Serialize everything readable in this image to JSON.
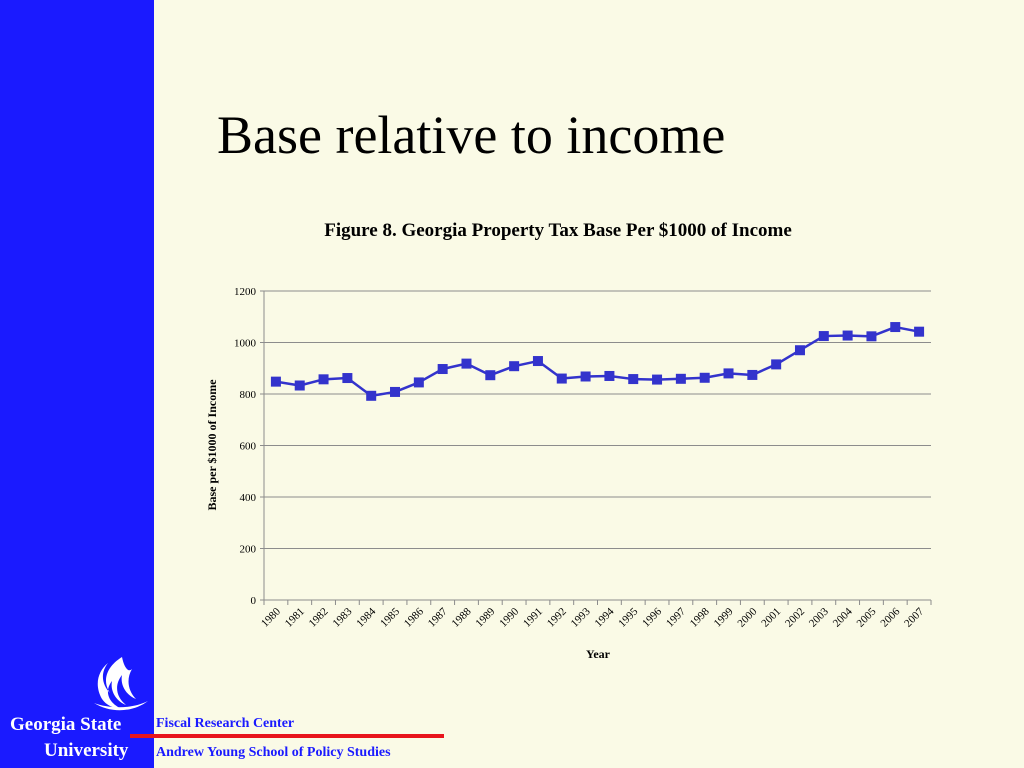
{
  "slide": {
    "title": "Base relative to income"
  },
  "sidebar": {
    "university_line1": "Georgia State",
    "university_line2": "University",
    "logo_icon": "gsu-flame-icon"
  },
  "footer": {
    "line1": "Fiscal Research Center",
    "line2": "Andrew Young School of Policy Studies"
  },
  "colors": {
    "sidebar": "#1a1aff",
    "background": "#fafae6",
    "accent_rule": "#e8141c",
    "series": "#3333cc"
  },
  "chart_data": {
    "type": "line",
    "title": "Figure 8. Georgia Property Tax Base Per $1000 of Income",
    "xlabel": "Year",
    "ylabel": "Base per $1000 of Income",
    "ylim": [
      0,
      1200
    ],
    "yticks": [
      0,
      200,
      400,
      600,
      800,
      1000,
      1200
    ],
    "grid": true,
    "legend": "none",
    "categories": [
      "1980",
      "1981",
      "1982",
      "1983",
      "1984",
      "1985",
      "1986",
      "1987",
      "1988",
      "1989",
      "1990",
      "1991",
      "1992",
      "1993",
      "1994",
      "1995",
      "1996",
      "1997",
      "1998",
      "1999",
      "2000",
      "2001",
      "2002",
      "2003",
      "2004",
      "2005",
      "2006",
      "2007"
    ],
    "series": [
      {
        "values": [
          848,
          833,
          857,
          862,
          793,
          808,
          845,
          897,
          918,
          873,
          908,
          928,
          860,
          868,
          870,
          858,
          856,
          859,
          863,
          880,
          874,
          915,
          970,
          1025,
          1027,
          1024,
          1060,
          1042
        ],
        "marker": "square"
      }
    ]
  }
}
